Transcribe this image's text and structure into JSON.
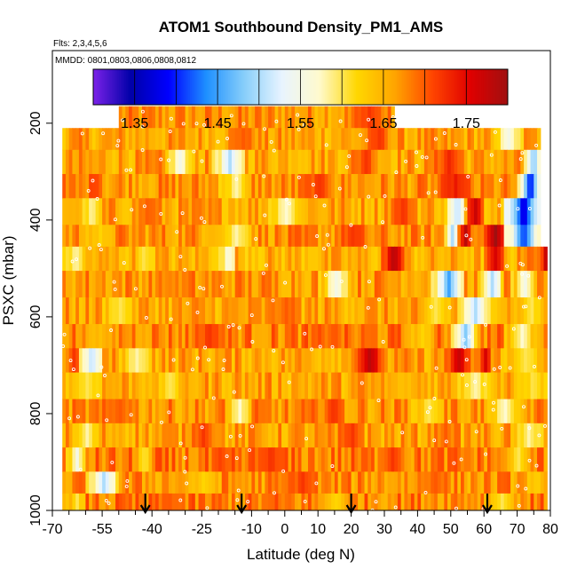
{
  "chart_data": {
    "type": "heatmap",
    "title": "ATOM1 Southbound Density_PM1_AMS",
    "subtitle_flights": "Flts: 2,3,4,5,6",
    "subtitle_dates": "MMDD: 0801,0803,0806,0808,0812",
    "xlabel": "Latitude (deg N)",
    "ylabel": "PSXC (mbar)",
    "xlim": [
      -70,
      80
    ],
    "ylim": [
      1000,
      50
    ],
    "x_ticks": [
      -70,
      -55,
      -40,
      -25,
      -10,
      0,
      10,
      20,
      30,
      40,
      50,
      60,
      70,
      80
    ],
    "x_tick_labels": [
      "-70",
      "-55",
      "-40",
      "-25",
      "-10",
      "0",
      "10",
      "20",
      "30",
      "40",
      "50",
      "60",
      "70",
      "80"
    ],
    "x_minor_ticks": [
      -65,
      -60,
      -50,
      -45,
      -35,
      -30,
      -20,
      -15,
      -5,
      5,
      15,
      25,
      35,
      45,
      55,
      65,
      75
    ],
    "y_ticks": [
      200,
      400,
      600,
      800,
      1000
    ],
    "y_tick_labels": [
      "200",
      "400",
      "600",
      "800",
      "1000"
    ],
    "colorbar": {
      "range": [
        1.3,
        1.8
      ],
      "ticks": [
        1.35,
        1.45,
        1.55,
        1.65,
        1.75
      ],
      "tick_labels": [
        "1.35",
        "1.45",
        "1.55",
        "1.65",
        "1.75"
      ],
      "boundaries": [
        1.3,
        1.35,
        1.4,
        1.45,
        1.5,
        1.55,
        1.6,
        1.65,
        1.7,
        1.75,
        1.8
      ],
      "colors": [
        "#7b22e8",
        "#0000a8",
        "#0000ff",
        "#1e90ff",
        "#87cefa",
        "#e8f4ff",
        "#fffacd",
        "#ffd700",
        "#ffa500",
        "#ff4500",
        "#e00000",
        "#a01010"
      ]
    },
    "arrow_latitudes": [
      -42,
      -13,
      20,
      61
    ],
    "layers": [
      {
        "p_top": 165,
        "p_bot": 210,
        "x_start": -50,
        "x_end": 33,
        "base": 1.67,
        "hot": [
          [
            20,
            30,
            1.72
          ]
        ]
      },
      {
        "p_top": 210,
        "p_bot": 255,
        "x_start": -67,
        "x_end": 77,
        "base": 1.66,
        "hot": [
          [
            -18,
            -8,
            1.7
          ],
          [
            24,
            32,
            1.72
          ],
          [
            62,
            72,
            1.55
          ]
        ]
      },
      {
        "p_top": 255,
        "p_bot": 305,
        "x_start": -67,
        "x_end": 77,
        "base": 1.66,
        "hot": [
          [
            -36,
            -28,
            1.55
          ],
          [
            -22,
            -12,
            1.5
          ],
          [
            20,
            28,
            1.72
          ],
          [
            44,
            54,
            1.73
          ],
          [
            72,
            77,
            1.47
          ]
        ]
      },
      {
        "p_top": 305,
        "p_bot": 355,
        "x_start": -67,
        "x_end": 77,
        "base": 1.67,
        "hot": [
          [
            -60,
            -55,
            1.72
          ],
          [
            -20,
            -10,
            1.58
          ],
          [
            5,
            15,
            1.72
          ],
          [
            46,
            56,
            1.74
          ],
          [
            70,
            77,
            1.38
          ]
        ]
      },
      {
        "p_top": 355,
        "p_bot": 410,
        "x_start": -67,
        "x_end": 77,
        "base": 1.66,
        "hot": [
          [
            -62,
            -55,
            1.58
          ],
          [
            -45,
            -38,
            1.7
          ],
          [
            -5,
            5,
            1.57
          ],
          [
            30,
            40,
            1.72
          ],
          [
            48,
            55,
            1.5
          ],
          [
            54,
            60,
            1.77
          ],
          [
            66,
            77,
            1.36
          ]
        ]
      },
      {
        "p_top": 410,
        "p_bot": 455,
        "x_start": -67,
        "x_end": 77,
        "base": 1.67,
        "hot": [
          [
            -60,
            -52,
            1.62
          ],
          [
            -20,
            -10,
            1.58
          ],
          [
            15,
            25,
            1.72
          ],
          [
            48,
            52,
            1.5
          ],
          [
            52,
            56,
            1.78
          ],
          [
            60,
            66,
            1.8
          ],
          [
            66,
            77,
            1.4
          ]
        ]
      },
      {
        "p_top": 455,
        "p_bot": 505,
        "x_start": -67,
        "x_end": 79,
        "base": 1.65,
        "hot": [
          [
            -67,
            -60,
            1.58
          ],
          [
            -45,
            -40,
            1.6
          ],
          [
            -20,
            -15,
            1.55
          ],
          [
            29,
            36,
            1.79
          ],
          [
            60,
            66,
            1.76
          ],
          [
            70,
            77,
            1.7
          ],
          [
            77,
            79,
            1.77
          ]
        ]
      },
      {
        "p_top": 505,
        "p_bot": 560,
        "x_start": -67,
        "x_end": 79,
        "base": 1.67,
        "hot": [
          [
            -40,
            -30,
            1.68
          ],
          [
            10,
            20,
            1.55
          ],
          [
            44,
            54,
            1.45
          ],
          [
            58,
            66,
            1.5
          ],
          [
            68,
            76,
            1.55
          ]
        ]
      },
      {
        "p_top": 560,
        "p_bot": 615,
        "x_start": -67,
        "x_end": 79,
        "base": 1.66,
        "hot": [
          [
            -55,
            -45,
            1.6
          ],
          [
            -5,
            5,
            1.7
          ],
          [
            40,
            50,
            1.6
          ],
          [
            52,
            62,
            1.5
          ],
          [
            70,
            78,
            1.6
          ]
        ]
      },
      {
        "p_top": 615,
        "p_bot": 665,
        "x_start": -67,
        "x_end": 79,
        "base": 1.68,
        "hot": [
          [
            -62,
            -50,
            1.64
          ],
          [
            -28,
            -18,
            1.72
          ],
          [
            10,
            18,
            1.7
          ],
          [
            36,
            46,
            1.62
          ],
          [
            50,
            58,
            1.48
          ],
          [
            66,
            76,
            1.57
          ]
        ]
      },
      {
        "p_top": 665,
        "p_bot": 715,
        "x_start": -67,
        "x_end": 79,
        "base": 1.66,
        "hot": [
          [
            -66,
            -62,
            1.72
          ],
          [
            -62,
            -55,
            1.5
          ],
          [
            -50,
            -40,
            1.58
          ],
          [
            20,
            30,
            1.78
          ],
          [
            48,
            56,
            1.77
          ],
          [
            58,
            62,
            1.76
          ],
          [
            66,
            78,
            1.6
          ]
        ]
      },
      {
        "p_top": 715,
        "p_bot": 770,
        "x_start": -67,
        "x_end": 79,
        "base": 1.66,
        "hot": [
          [
            -65,
            -55,
            1.6
          ],
          [
            -40,
            -30,
            1.6
          ],
          [
            30,
            40,
            1.64
          ],
          [
            52,
            62,
            1.58
          ],
          [
            70,
            79,
            1.6
          ]
        ]
      },
      {
        "p_top": 770,
        "p_bot": 820,
        "x_start": -67,
        "x_end": 79,
        "base": 1.67,
        "hot": [
          [
            -55,
            -45,
            1.7
          ],
          [
            -18,
            -10,
            1.57
          ],
          [
            10,
            18,
            1.72
          ],
          [
            38,
            48,
            1.6
          ],
          [
            60,
            72,
            1.57
          ]
        ]
      },
      {
        "p_top": 820,
        "p_bot": 870,
        "x_start": -67,
        "x_end": 79,
        "base": 1.66,
        "hot": [
          [
            -64,
            -56,
            1.58
          ],
          [
            -30,
            -20,
            1.72
          ],
          [
            16,
            24,
            1.72
          ],
          [
            44,
            52,
            1.7
          ],
          [
            68,
            78,
            1.58
          ]
        ]
      },
      {
        "p_top": 870,
        "p_bot": 920,
        "x_start": -67,
        "x_end": 79,
        "base": 1.68,
        "hot": [
          [
            -66,
            -60,
            1.55
          ],
          [
            -45,
            -40,
            1.6
          ],
          [
            -10,
            0,
            1.72
          ],
          [
            28,
            36,
            1.72
          ],
          [
            66,
            74,
            1.6
          ]
        ]
      },
      {
        "p_top": 920,
        "p_bot": 965,
        "x_start": -67,
        "x_end": 79,
        "base": 1.67,
        "hot": [
          [
            -60,
            -50,
            1.5
          ],
          [
            -30,
            -20,
            1.62
          ],
          [
            0,
            10,
            1.72
          ],
          [
            40,
            50,
            1.7
          ],
          [
            72,
            79,
            1.62
          ]
        ]
      },
      {
        "p_top": 965,
        "p_bot": 1000,
        "x_start": -67,
        "x_end": 79,
        "base": 1.68,
        "hot": [
          [
            -66,
            -60,
            1.6
          ],
          [
            -40,
            -30,
            1.7
          ],
          [
            10,
            20,
            1.62
          ],
          [
            60,
            70,
            1.6
          ]
        ]
      }
    ]
  }
}
